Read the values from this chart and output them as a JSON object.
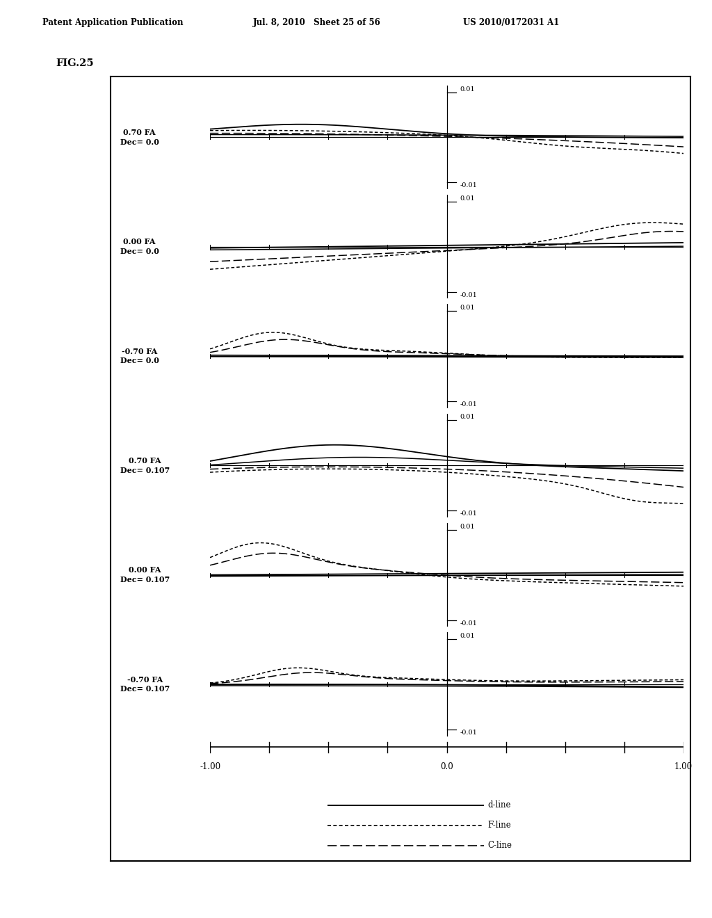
{
  "title": "FIG.25",
  "header_left": "Patent Application Publication",
  "header_mid": "Jul. 8, 2010   Sheet 25 of 56",
  "header_right": "US 2010/0172031 A1",
  "subplot_labels": [
    "0.70 FA\nDec= 0.0",
    "0.00 FA\nDec= 0.0",
    "-0.70 FA\nDec= 0.0",
    "0.70 FA\nDec= 0.107",
    "0.00 FA\nDec= 0.107",
    "-0.70 FA\nDec= 0.107"
  ],
  "ylim": [
    -0.0115,
    0.0115
  ],
  "xlim": [
    -1.0,
    1.0
  ],
  "ytick_vals": [
    0.01,
    -0.01
  ],
  "xtick_vals": [
    -1.0,
    -0.75,
    -0.5,
    -0.25,
    0.0,
    0.25,
    0.5,
    0.75,
    1.0
  ],
  "legend_labels": [
    "d-line",
    "F-line",
    "C-line"
  ],
  "bg_color": "#ffffff",
  "line_color": "#000000"
}
